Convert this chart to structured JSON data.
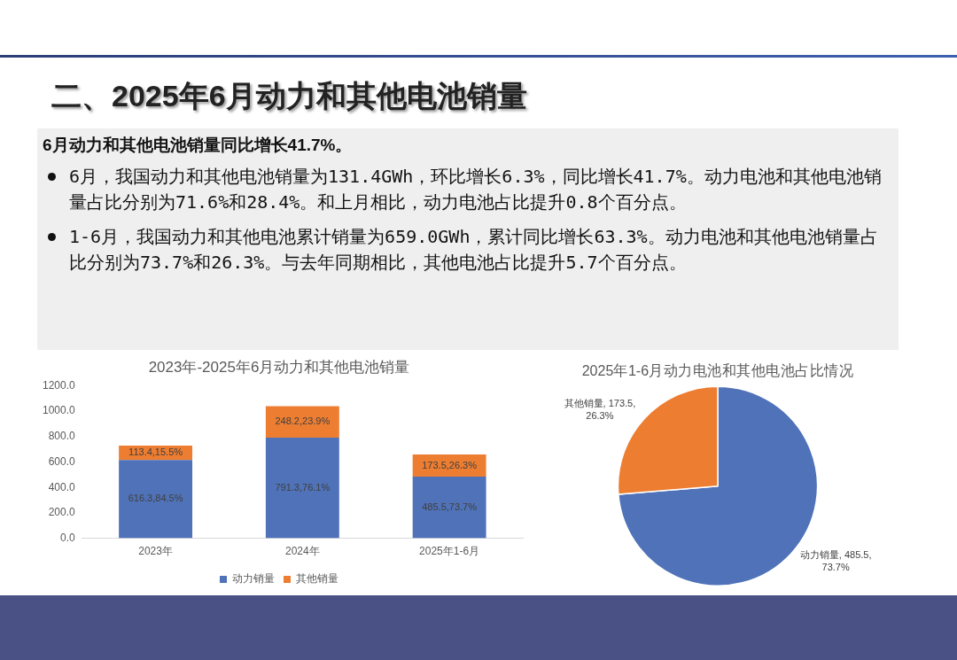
{
  "chart_data": [
    {
      "type": "other",
      "title": "二、2025年6月动力和其他电池销量",
      "subtitle": "6月动力和其他电池销量同比增长41.7%。",
      "annotations": [
        "6月，我国动力和其他电池销量为131.4GWh，环比增长6.3%，同比增长41.7%。动力电池和其他电池销量占比分别为71.6%和28.4%。和上月相比，动力电池占比提升0.8个百分点。",
        "1-6月，我国动力和其他电池累计销量为659.0GWh，累计同比增长63.3%。动力电池和其他电池销量占比分别为73.7%和26.3%。与去年同期相比，其他电池占比提升5.7个百分点。"
      ]
    },
    {
      "type": "bar",
      "title": "2023年-2025年6月动力和其他电池销量",
      "categories": [
        "2023年",
        "2024年",
        "2025年1-6月"
      ],
      "stacked": true,
      "legend": "bottom",
      "ylim": [
        0,
        1200
      ],
      "yticks": [
        {
          "value": 0,
          "label": "0.0"
        },
        {
          "value": 200,
          "label": "200.0"
        },
        {
          "value": 400,
          "label": "400.0"
        },
        {
          "value": 600,
          "label": "600.0"
        },
        {
          "value": 800,
          "label": "800.0"
        },
        {
          "value": 1000,
          "label": "1000.0"
        },
        {
          "value": 1200,
          "label": "1200.0"
        }
      ],
      "series": [
        {
          "name": "动力销量",
          "color": "#4f72b8",
          "values": [
            616.3,
            791.3,
            485.5
          ],
          "value_labels": [
            "616.3,84.5%",
            "791.3,76.1%",
            "485.5,73.7%"
          ]
        },
        {
          "name": "其他销量",
          "color": "#ed7d31",
          "values": [
            113.4,
            248.2,
            173.5
          ],
          "value_labels": [
            "113.4,15.5%",
            "248.2,23.9%",
            "173.5,26.3%"
          ]
        }
      ]
    },
    {
      "type": "pie",
      "title": "2025年1-6月动力电池和其他电池占比情况",
      "categories": [
        "动力销量",
        "其他销量"
      ],
      "values": [
        485.5,
        173.5
      ],
      "colors": [
        "#4f72b8",
        "#ed7d31"
      ],
      "value_labels": [
        "485.5, 73.7%",
        "173.5, 26.3%"
      ]
    }
  ]
}
